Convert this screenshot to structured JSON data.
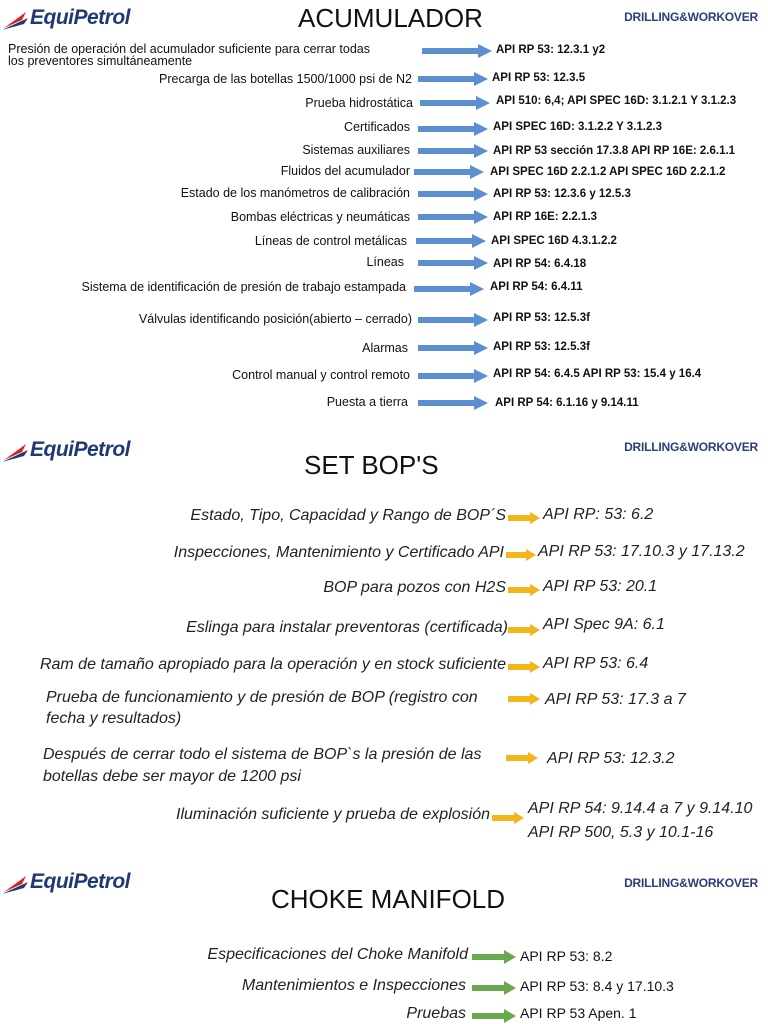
{
  "brand": {
    "logo_text": "EquiPetrol",
    "tag": "DRILLING&WORKOVER"
  },
  "colors": {
    "blue_arrow": "#5b8fd0",
    "yellow_arrow": "#f2b51a",
    "green_arrow": "#6aa84f",
    "brand": "#1f3a73",
    "logo_red": "#d4261c"
  },
  "acumulador": {
    "title": "ACUMULADOR",
    "items": [
      {
        "label": "Presión de operación del acumulador suficiente para cerrar todas",
        "label2": "los preventores simultáneamente",
        "ref": "API RP 53: 12.3.1 y2"
      },
      {
        "label": "Precarga de las botellas 1500/1000 psi de N2",
        "ref": "API RP 53: 12.3.5"
      },
      {
        "label": "Prueba hidrostática",
        "ref": "API 510: 6,4;  API SPEC 16D: 3.1.2.1 Y 3.1.2.3"
      },
      {
        "label": "Certificados",
        "ref": "API SPEC 16D: 3.1.2.2 Y 3.1.2.3"
      },
      {
        "label": "Sistemas auxiliares",
        "ref": "API RP 53 sección 17.3.8 API RP 16E: 2.6.1.1"
      },
      {
        "label": "Fluidos del acumulador",
        "ref": "API SPEC 16D 2.2.1.2   API SPEC 16D 2.2.1.2"
      },
      {
        "label": "Estado de los manómetros de calibración",
        "ref": "API RP 53: 12.3.6 y 12.5.3"
      },
      {
        "label": "Bombas eléctricas y neumáticas",
        "ref": "API RP 16E: 2.2.1.3"
      },
      {
        "label": "Líneas de control metálicas",
        "ref": "API SPEC 16D 4.3.1.2.2"
      },
      {
        "label": "Líneas",
        "ref": "API RP 54: 6.4.18"
      },
      {
        "label": "Sistema de identificación de presión de trabajo estampada",
        "ref": "API RP 54: 6.4.11"
      },
      {
        "label": "Válvulas identificando posición(abierto – cerrado)",
        "ref": "API RP 53: 12.5.3f"
      },
      {
        "label": "Alarmas",
        "ref": "API RP 53: 12.5.3f"
      },
      {
        "label": "Control manual y control remoto",
        "ref": "API RP 54: 6.4.5 API RP 53: 15.4 y 16.4"
      },
      {
        "label": "Puesta a tierra",
        "ref": "API RP 54: 6.1.16 y 9.14.11"
      }
    ]
  },
  "set_bops": {
    "title": "SET BOP'S",
    "items": [
      {
        "label": "Estado, Tipo, Capacidad y Rango de BOP´S",
        "ref": "API RP: 53: 6.2"
      },
      {
        "label": "Inspecciones, Mantenimiento y Certificado API",
        "ref": "API RP 53: 17.10.3 y 17.13.2"
      },
      {
        "label": "BOP para pozos con H2S",
        "ref": "API RP 53: 20.1"
      },
      {
        "label": "Eslinga para instalar preventoras (certificada)",
        "ref": "API Spec 9A: 6.1"
      },
      {
        "label": "Ram de tamaño apropiado para la operación y en stock suficiente",
        "ref": "API RP 53: 6.4"
      },
      {
        "label": "Prueba de funcionamiento y de presión de BOP (registro con",
        "label2": "fecha y resultados)",
        "ref": "API RP 53: 17.3 a 7"
      },
      {
        "label": "Después de cerrar todo el sistema de BOP`s la presión de las",
        "label2": "botellas debe ser mayor de 1200 psi",
        "ref": "API RP 53: 12.3.2"
      },
      {
        "label": "Iluminación suficiente y prueba de explosión",
        "ref": "API RP 54: 9.14.4 a 7 y 9.14.10",
        "ref2": "API RP 500, 5.3 y 10.1-16"
      }
    ]
  },
  "choke_manifold": {
    "title": "CHOKE MANIFOLD",
    "items": [
      {
        "label": "Especificaciones del Choke Manifold",
        "ref": "API RP 53: 8.2"
      },
      {
        "label": "Mantenimientos e Inspecciones",
        "ref": "API RP 53: 8.4 y 17.10.3"
      },
      {
        "label": "Pruebas",
        "ref": "API RP 53 Apen. 1"
      }
    ]
  }
}
